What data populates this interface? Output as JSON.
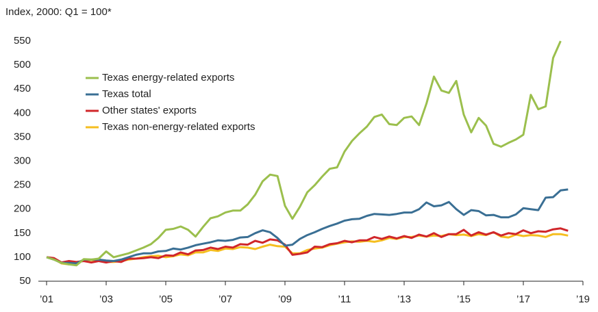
{
  "chart_data": {
    "type": "line",
    "ylabel": "Index, 2000: Q1 = 100*",
    "x": [
      2001,
      2001.25,
      2001.5,
      2001.75,
      2002,
      2002.25,
      2002.5,
      2002.75,
      2003,
      2003.25,
      2003.5,
      2003.75,
      2004,
      2004.25,
      2004.5,
      2004.75,
      2005,
      2005.25,
      2005.5,
      2005.75,
      2006,
      2006.25,
      2006.5,
      2006.75,
      2007,
      2007.25,
      2007.5,
      2007.75,
      2008,
      2008.25,
      2008.5,
      2008.75,
      2009,
      2009.25,
      2009.5,
      2009.75,
      2010,
      2010.25,
      2010.5,
      2010.75,
      2011,
      2011.25,
      2011.5,
      2011.75,
      2012,
      2012.25,
      2012.5,
      2012.75,
      2013,
      2013.25,
      2013.5,
      2013.75,
      2014,
      2014.25,
      2014.5,
      2014.75,
      2015,
      2015.25,
      2015.5,
      2015.75,
      2016,
      2016.25,
      2016.5,
      2016.75,
      2017,
      2017.25,
      2017.5,
      2017.75,
      2018,
      2018.25,
      2018.5
    ],
    "series": [
      {
        "name": "Texas energy-related exports",
        "color": "#9bbf4d",
        "values": [
          100,
          95,
          88,
          85,
          83,
          96,
          95,
          97,
          112,
          100,
          104,
          108,
          114,
          120,
          127,
          140,
          157,
          159,
          164,
          157,
          143,
          163,
          181,
          185,
          193,
          197,
          197,
          210,
          230,
          258,
          272,
          269,
          207,
          180,
          205,
          235,
          250,
          268,
          284,
          287,
          320,
          342,
          358,
          372,
          392,
          397,
          377,
          375,
          390,
          393,
          375,
          420,
          476,
          447,
          442,
          467,
          397,
          360,
          390,
          374,
          336,
          330,
          338,
          345,
          355,
          438,
          408,
          414,
          515,
          550,
          null
        ]
      },
      {
        "name": "Texas total",
        "color": "#3a6f94",
        "values": [
          100,
          95,
          88,
          88,
          87,
          95,
          95,
          95,
          93,
          92,
          95,
          100,
          105,
          108,
          108,
          112,
          113,
          118,
          116,
          120,
          125,
          128,
          131,
          135,
          134,
          136,
          141,
          142,
          150,
          156,
          152,
          140,
          124,
          126,
          138,
          146,
          152,
          159,
          165,
          170,
          176,
          179,
          180,
          186,
          190,
          189,
          188,
          190,
          193,
          193,
          200,
          214,
          206,
          208,
          215,
          200,
          188,
          198,
          196,
          187,
          188,
          183,
          183,
          189,
          202,
          200,
          198,
          224,
          225,
          239,
          241
        ]
      },
      {
        "name": "Other states' exports",
        "color": "#d0262a",
        "values": [
          100,
          98,
          89,
          92,
          90,
          92,
          89,
          92,
          89,
          92,
          90,
          97,
          97,
          98,
          100,
          98,
          104,
          103,
          110,
          106,
          114,
          115,
          120,
          117,
          122,
          120,
          127,
          126,
          134,
          130,
          137,
          135,
          126,
          105,
          107,
          110,
          122,
          121,
          127,
          129,
          134,
          131,
          135,
          135,
          142,
          138,
          143,
          139,
          144,
          140,
          147,
          143,
          150,
          142,
          148,
          148,
          157,
          145,
          152,
          147,
          152,
          145,
          150,
          148,
          156,
          150,
          154,
          153,
          158,
          160,
          155
        ]
      },
      {
        "name": "Texas non-energy-related exports",
        "color": "#f5be1f",
        "values": [
          100,
          96,
          87,
          85,
          85,
          95,
          94,
          93,
          90,
          90,
          92,
          95,
          97,
          100,
          102,
          103,
          100,
          102,
          106,
          104,
          110,
          110,
          115,
          113,
          118,
          117,
          121,
          120,
          117,
          122,
          126,
          123,
          122,
          108,
          108,
          115,
          118,
          120,
          125,
          128,
          131,
          133,
          132,
          134,
          132,
          135,
          140,
          138,
          142,
          142,
          145,
          143,
          145,
          144,
          148,
          146,
          147,
          144,
          148,
          146,
          152,
          143,
          141,
          147,
          144,
          146,
          145,
          142,
          148,
          148,
          145
        ]
      }
    ],
    "xlim": [
      2001,
      2019
    ],
    "xticks": [
      {
        "value": 2001,
        "label": "’01"
      },
      {
        "value": 2003,
        "label": "’03"
      },
      {
        "value": 2005,
        "label": "’05"
      },
      {
        "value": 2007,
        "label": "’07"
      },
      {
        "value": 2009,
        "label": "’09"
      },
      {
        "value": 2011,
        "label": "’11"
      },
      {
        "value": 2013,
        "label": "’13"
      },
      {
        "value": 2015,
        "label": "’15"
      },
      {
        "value": 2017,
        "label": "’17"
      },
      {
        "value": 2019,
        "label": "’19"
      }
    ],
    "ylim": [
      50,
      550
    ],
    "yticks": [
      50,
      100,
      150,
      200,
      250,
      300,
      350,
      400,
      450,
      500,
      550
    ],
    "legend": "upper left"
  }
}
